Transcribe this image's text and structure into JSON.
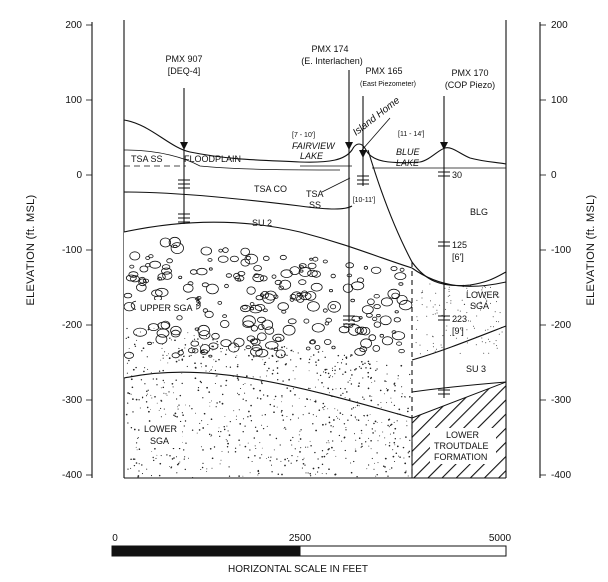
{
  "axes": {
    "y_title": "ELEVATION (ft. MSL)",
    "left_ticks": [
      "200",
      "100",
      "0",
      "-100",
      "-200",
      "-300",
      "-400"
    ],
    "right_ticks": [
      "200",
      "100",
      "0",
      "-100",
      "-200",
      "-300",
      "-400"
    ]
  },
  "wells": {
    "pmx907": {
      "name": "PMX 907",
      "alias": "[DEQ-4]"
    },
    "pmx174": {
      "name": "PMX 174",
      "alias": "(E. Interlachen)"
    },
    "pmx165": {
      "name": "PMX 165",
      "alias": "(East Piezometer)"
    },
    "pmx170": {
      "name": "PMX 170",
      "alias": "(COP Piezo)"
    }
  },
  "features": {
    "floodplain": "FLOODPLAIN",
    "fairview_lake": "FAIRVIEW LAKE",
    "fairview_screen": "[7 - 10']",
    "blue_lake": "BLUE LAKE",
    "blue_screen": "[11 - 14']",
    "handwritten_note": "Island Home",
    "pmx165_screen": "[10-11']"
  },
  "units": {
    "tsa_ss_left": "TSA SS",
    "tsa_co": "TSA CO",
    "tsa_ss": "TSA SS",
    "su2": "SU 2",
    "blg": "BLG",
    "upper_sga": "UPPER SGA",
    "lower_sga_right": "LOWER SGA",
    "su3": "SU 3",
    "lower_sga_left": "LOWER SGA",
    "lower_troutdale": "LOWER TROUTDALE FORMATION"
  },
  "annotations": {
    "d30": "30",
    "d125": "125",
    "d125_note": "[6']",
    "d223": "223",
    "d223_note": "[9']"
  },
  "scale_bar": {
    "labels": [
      "0",
      "2500",
      "5000"
    ],
    "caption": "HORIZONTAL SCALE IN FEET"
  }
}
